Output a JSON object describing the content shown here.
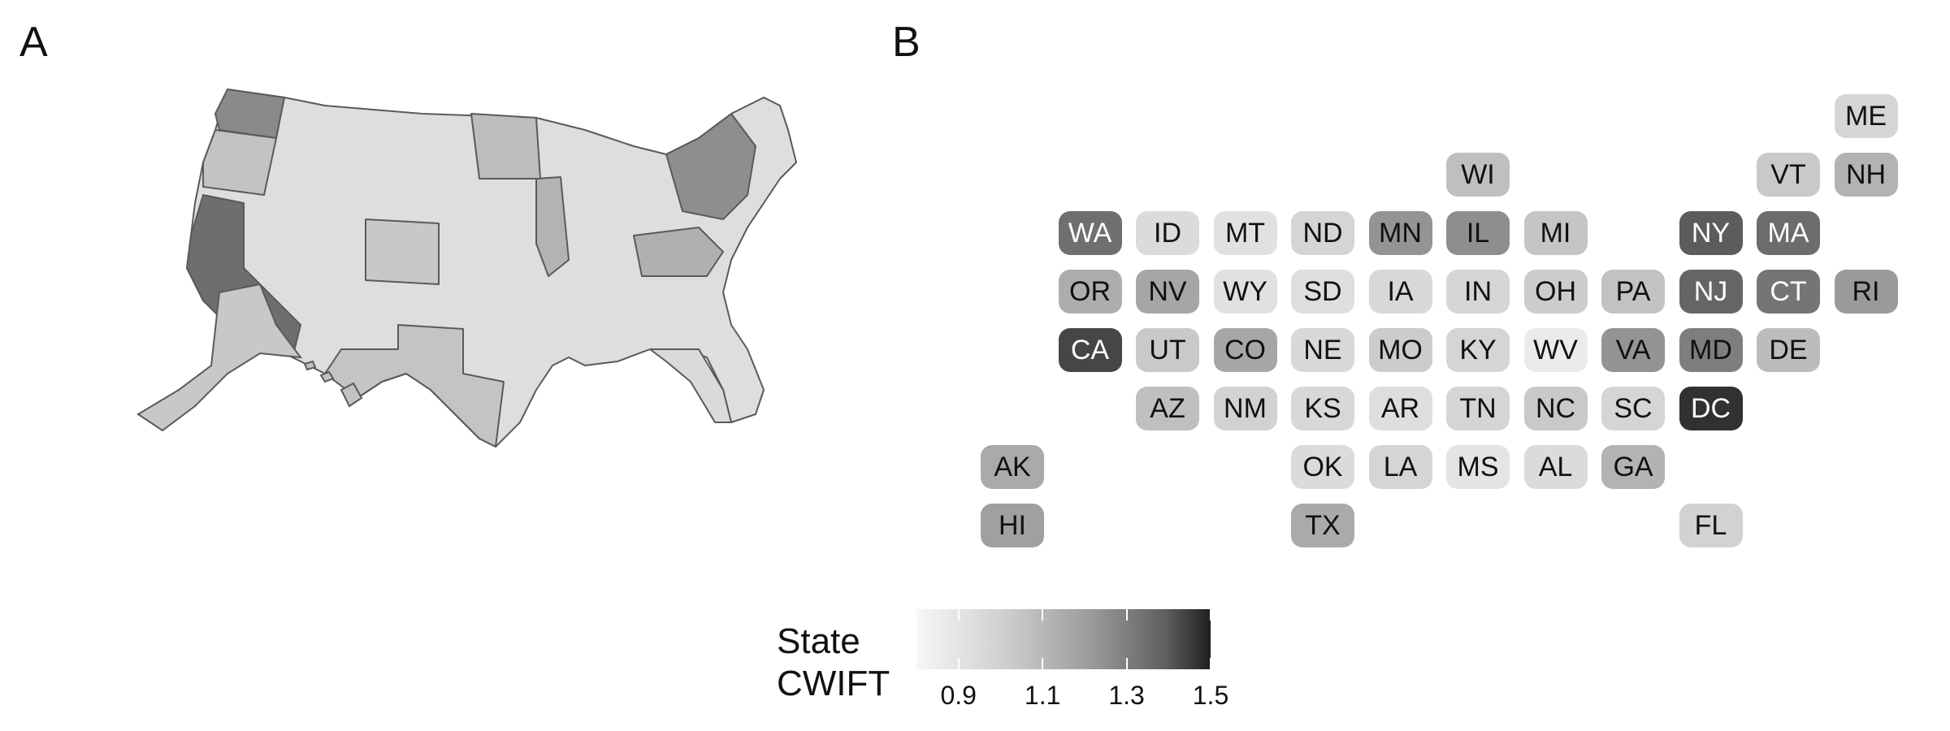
{
  "panels": {
    "a_label": "A",
    "b_label": "B"
  },
  "legend": {
    "title_line1": "State",
    "title_line2": "CWIFT",
    "range": [
      0.8,
      1.5
    ],
    "ticks": [
      "0.9",
      "1.1",
      "1.3",
      "1.5"
    ],
    "tick_values": [
      0.9,
      1.1,
      1.3,
      1.5
    ],
    "colors": {
      "low": "#f7f7f7",
      "high": "#1e1e1e"
    }
  },
  "states": [
    {
      "abbr": "ME",
      "col": 11,
      "row": 0,
      "cwift": 0.91
    },
    {
      "abbr": "WI",
      "col": 6,
      "row": 1,
      "cwift": 0.98
    },
    {
      "abbr": "VT",
      "col": 10,
      "row": 1,
      "cwift": 0.95
    },
    {
      "abbr": "NH",
      "col": 11,
      "row": 1,
      "cwift": 1.02
    },
    {
      "abbr": "WA",
      "col": 1,
      "row": 2,
      "cwift": 1.24
    },
    {
      "abbr": "ID",
      "col": 2,
      "row": 2,
      "cwift": 0.89
    },
    {
      "abbr": "MT",
      "col": 3,
      "row": 2,
      "cwift": 0.87
    },
    {
      "abbr": "ND",
      "col": 4,
      "row": 2,
      "cwift": 0.91
    },
    {
      "abbr": "MN",
      "col": 5,
      "row": 2,
      "cwift": 1.12
    },
    {
      "abbr": "IL",
      "col": 6,
      "row": 2,
      "cwift": 1.14
    },
    {
      "abbr": "MI",
      "col": 7,
      "row": 2,
      "cwift": 0.96
    },
    {
      "abbr": "NY",
      "col": 9,
      "row": 2,
      "cwift": 1.3
    },
    {
      "abbr": "MA",
      "col": 10,
      "row": 2,
      "cwift": 1.25
    },
    {
      "abbr": "OR",
      "col": 1,
      "row": 3,
      "cwift": 1.04
    },
    {
      "abbr": "NV",
      "col": 2,
      "row": 3,
      "cwift": 1.06
    },
    {
      "abbr": "WY",
      "col": 3,
      "row": 3,
      "cwift": 0.87
    },
    {
      "abbr": "SD",
      "col": 4,
      "row": 3,
      "cwift": 0.88
    },
    {
      "abbr": "IA",
      "col": 5,
      "row": 3,
      "cwift": 0.9
    },
    {
      "abbr": "IN",
      "col": 6,
      "row": 3,
      "cwift": 0.91
    },
    {
      "abbr": "OH",
      "col": 7,
      "row": 3,
      "cwift": 0.94
    },
    {
      "abbr": "PA",
      "col": 8,
      "row": 3,
      "cwift": 0.97
    },
    {
      "abbr": "NJ",
      "col": 9,
      "row": 3,
      "cwift": 1.27
    },
    {
      "abbr": "CT",
      "col": 10,
      "row": 3,
      "cwift": 1.22
    },
    {
      "abbr": "RI",
      "col": 11,
      "row": 3,
      "cwift": 1.1
    },
    {
      "abbr": "CA",
      "col": 1,
      "row": 4,
      "cwift": 1.37
    },
    {
      "abbr": "UT",
      "col": 2,
      "row": 4,
      "cwift": 0.95
    },
    {
      "abbr": "CO",
      "col": 3,
      "row": 4,
      "cwift": 1.06
    },
    {
      "abbr": "NE",
      "col": 4,
      "row": 4,
      "cwift": 0.9
    },
    {
      "abbr": "MO",
      "col": 5,
      "row": 4,
      "cwift": 0.94
    },
    {
      "abbr": "KY",
      "col": 6,
      "row": 4,
      "cwift": 0.91
    },
    {
      "abbr": "WV",
      "col": 7,
      "row": 4,
      "cwift": 0.84
    },
    {
      "abbr": "VA",
      "col": 8,
      "row": 4,
      "cwift": 1.12
    },
    {
      "abbr": "MD",
      "col": 9,
      "row": 4,
      "cwift": 1.19
    },
    {
      "abbr": "DE",
      "col": 10,
      "row": 4,
      "cwift": 0.99
    },
    {
      "abbr": "AZ",
      "col": 2,
      "row": 5,
      "cwift": 0.98
    },
    {
      "abbr": "NM",
      "col": 3,
      "row": 5,
      "cwift": 0.92
    },
    {
      "abbr": "KS",
      "col": 4,
      "row": 5,
      "cwift": 0.9
    },
    {
      "abbr": "AR",
      "col": 5,
      "row": 5,
      "cwift": 0.88
    },
    {
      "abbr": "TN",
      "col": 6,
      "row": 5,
      "cwift": 0.91
    },
    {
      "abbr": "NC",
      "col": 7,
      "row": 5,
      "cwift": 0.95
    },
    {
      "abbr": "SC",
      "col": 8,
      "row": 5,
      "cwift": 0.91
    },
    {
      "abbr": "DC",
      "col": 9,
      "row": 5,
      "cwift": 1.44
    },
    {
      "abbr": "AK",
      "col": 0,
      "row": 6,
      "cwift": 1.05
    },
    {
      "abbr": "OK",
      "col": 4,
      "row": 6,
      "cwift": 0.89
    },
    {
      "abbr": "LA",
      "col": 5,
      "row": 6,
      "cwift": 0.91
    },
    {
      "abbr": "MS",
      "col": 6,
      "row": 6,
      "cwift": 0.86
    },
    {
      "abbr": "AL",
      "col": 7,
      "row": 6,
      "cwift": 0.89
    },
    {
      "abbr": "GA",
      "col": 8,
      "row": 6,
      "cwift": 1.02
    },
    {
      "abbr": "HI",
      "col": 0,
      "row": 7,
      "cwift": 1.08
    },
    {
      "abbr": "TX",
      "col": 4,
      "row": 7,
      "cwift": 1.05
    },
    {
      "abbr": "FL",
      "col": 9,
      "row": 7,
      "cwift": 0.92
    }
  ]
}
